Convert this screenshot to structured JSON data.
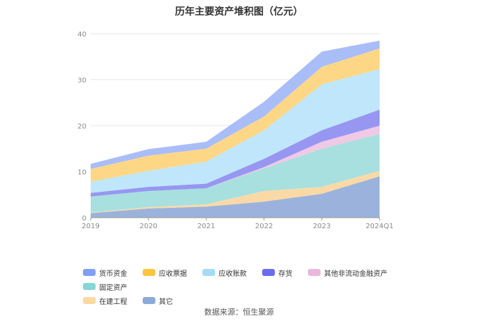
{
  "title": "历年主要资产堆积图（亿元）",
  "source": "数据来源：恒生聚源",
  "chart_data": {
    "type": "area",
    "stacked": true,
    "categories": [
      "2019",
      "2020",
      "2021",
      "2022",
      "2023",
      "2024Q1"
    ],
    "ylim": [
      0,
      40
    ],
    "yticks": [
      0,
      10,
      20,
      30,
      40
    ],
    "grid": true,
    "legend_position": "bottom",
    "series": [
      {
        "name": "其它",
        "color": "#9bb3dc",
        "values": [
          1.0,
          2.0,
          2.4,
          3.5,
          5.2,
          9.0
        ]
      },
      {
        "name": "在建工程",
        "color": "#fbd9a6",
        "values": [
          0.1,
          0.3,
          0.5,
          2.3,
          1.5,
          1.2
        ]
      },
      {
        "name": "固定资产",
        "color": "#a7e0df",
        "values": [
          3.5,
          3.5,
          3.5,
          4.9,
          8.3,
          8.0
        ]
      },
      {
        "name": "其他非流动金融资产",
        "color": "#f0c9e4",
        "values": [
          0.0,
          0.0,
          0.0,
          0.3,
          1.5,
          1.8
        ]
      },
      {
        "name": "存货",
        "color": "#9797f2",
        "values": [
          0.8,
          0.9,
          1.0,
          1.8,
          2.5,
          3.5
        ]
      },
      {
        "name": "应收账款",
        "color": "#bfe6fb",
        "values": [
          2.4,
          3.5,
          4.8,
          6.2,
          10.0,
          8.8
        ]
      },
      {
        "name": "应收票据",
        "color": "#fdd786",
        "values": [
          2.8,
          3.3,
          2.8,
          3.0,
          3.8,
          4.5
        ]
      },
      {
        "name": "货币资金",
        "color": "#a9bdf8",
        "values": [
          1.1,
          1.4,
          1.5,
          3.2,
          3.3,
          1.7
        ]
      }
    ]
  },
  "legend": {
    "row1": [
      {
        "name": "货币资金",
        "color": "#7f9ef6"
      },
      {
        "name": "应收票据",
        "color": "#fbc63c"
      },
      {
        "name": "应收账款",
        "color": "#a4dcf7"
      },
      {
        "name": "存货",
        "color": "#6c6cf0"
      },
      {
        "name": "其他非流动金融资产",
        "color": "#eab8dc"
      },
      {
        "name": "固定资产",
        "color": "#86d6d4"
      }
    ],
    "row2": [
      {
        "name": "在建工程",
        "color": "#fcd9a0"
      },
      {
        "name": "其它",
        "color": "#8caad8"
      }
    ]
  }
}
